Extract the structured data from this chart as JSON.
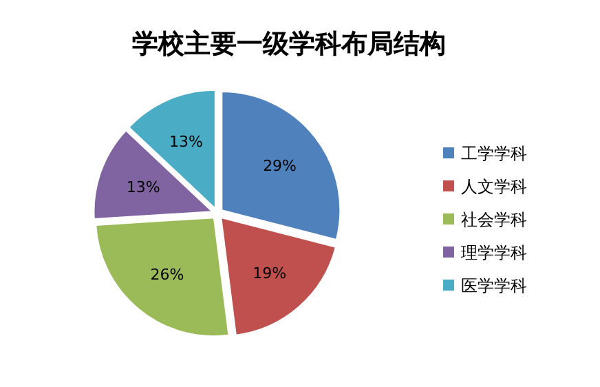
{
  "chart_data": {
    "type": "pie",
    "title": "学校主要一级学科布局结构",
    "categories": [
      "工学学科",
      "人文学科",
      "社会学科",
      "理学学科",
      "医学学科"
    ],
    "values": [
      29,
      19,
      26,
      13,
      13
    ],
    "colors": [
      "#4f81bd",
      "#c0504d",
      "#9bbb59",
      "#8064a2",
      "#4bacc6"
    ],
    "value_labels": [
      "29%",
      "19%",
      "26%",
      "13%",
      "13%"
    ],
    "legend": "right"
  }
}
